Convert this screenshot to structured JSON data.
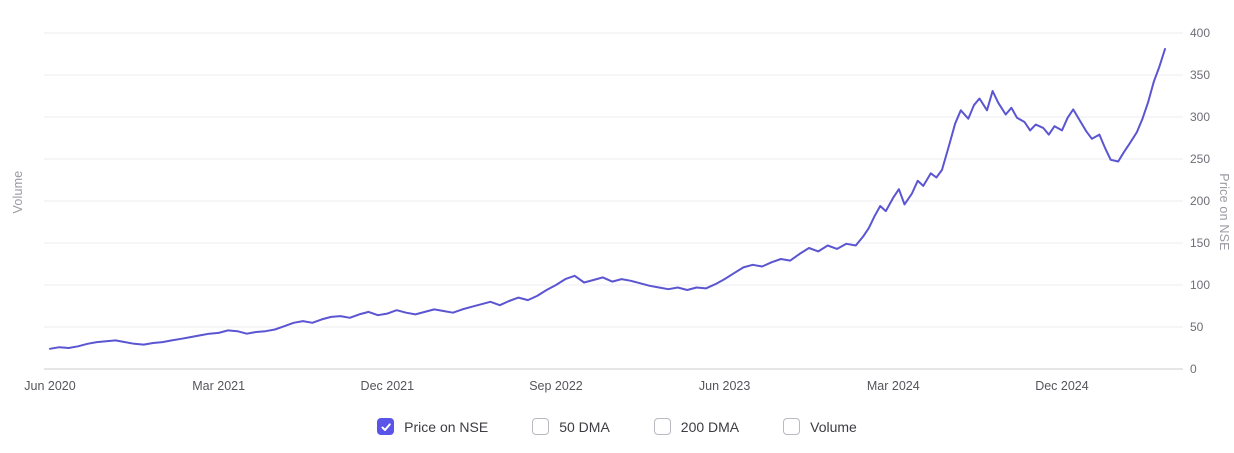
{
  "chart": {
    "left_axis_label": "Volume",
    "right_axis_label": "Price on NSE"
  },
  "chart_data": {
    "type": "line",
    "title": "",
    "ylabel_left": "Volume",
    "ylabel_right": "Price on NSE",
    "ylim": [
      0,
      400
    ],
    "grid": true,
    "legend_position": "bottom",
    "y_ticks": [
      0,
      50,
      100,
      150,
      200,
      250,
      300,
      350,
      400
    ],
    "x_ticks": [
      {
        "label": "Jun 2020",
        "month": 0
      },
      {
        "label": "Mar 2021",
        "month": 9
      },
      {
        "label": "Dec 2021",
        "month": 18
      },
      {
        "label": "Sep 2022",
        "month": 27
      },
      {
        "label": "Jun 2023",
        "month": 36
      },
      {
        "label": "Mar 2024",
        "month": 45
      },
      {
        "label": "Dec 2024",
        "month": 54
      }
    ],
    "series": [
      {
        "name": "Price on NSE",
        "color": "#5b55d1",
        "x_unit": "months since Jun 2020",
        "points": [
          [
            0,
            24
          ],
          [
            0.5,
            26
          ],
          [
            1,
            25
          ],
          [
            1.5,
            27
          ],
          [
            2,
            30
          ],
          [
            2.5,
            32
          ],
          [
            3,
            33
          ],
          [
            3.5,
            34
          ],
          [
            4,
            32
          ],
          [
            4.5,
            30
          ],
          [
            5,
            29
          ],
          [
            5.5,
            31
          ],
          [
            6,
            32
          ],
          [
            6.5,
            34
          ],
          [
            7,
            36
          ],
          [
            7.5,
            38
          ],
          [
            8,
            40
          ],
          [
            8.5,
            42
          ],
          [
            9,
            43
          ],
          [
            9.5,
            46
          ],
          [
            10,
            45
          ],
          [
            10.5,
            42
          ],
          [
            11,
            44
          ],
          [
            11.5,
            45
          ],
          [
            12,
            47
          ],
          [
            12.5,
            51
          ],
          [
            13,
            55
          ],
          [
            13.5,
            57
          ],
          [
            14,
            55
          ],
          [
            14.5,
            59
          ],
          [
            15,
            62
          ],
          [
            15.5,
            63
          ],
          [
            16,
            61
          ],
          [
            16.5,
            65
          ],
          [
            17,
            68
          ],
          [
            17.5,
            64
          ],
          [
            18,
            66
          ],
          [
            18.5,
            70
          ],
          [
            19,
            67
          ],
          [
            19.5,
            65
          ],
          [
            20,
            68
          ],
          [
            20.5,
            71
          ],
          [
            21,
            69
          ],
          [
            21.5,
            67
          ],
          [
            22,
            71
          ],
          [
            22.5,
            74
          ],
          [
            23,
            77
          ],
          [
            23.5,
            80
          ],
          [
            24,
            76
          ],
          [
            24.5,
            81
          ],
          [
            25,
            85
          ],
          [
            25.5,
            82
          ],
          [
            26,
            87
          ],
          [
            26.5,
            94
          ],
          [
            27,
            100
          ],
          [
            27.5,
            107
          ],
          [
            28,
            111
          ],
          [
            28.5,
            103
          ],
          [
            29,
            106
          ],
          [
            29.5,
            109
          ],
          [
            30,
            104
          ],
          [
            30.5,
            107
          ],
          [
            31,
            105
          ],
          [
            31.5,
            102
          ],
          [
            32,
            99
          ],
          [
            32.5,
            97
          ],
          [
            33,
            95
          ],
          [
            33.5,
            97
          ],
          [
            34,
            94
          ],
          [
            34.5,
            97
          ],
          [
            35,
            96
          ],
          [
            35.5,
            101
          ],
          [
            36,
            107
          ],
          [
            36.5,
            114
          ],
          [
            37,
            121
          ],
          [
            37.5,
            124
          ],
          [
            38,
            122
          ],
          [
            38.5,
            127
          ],
          [
            39,
            131
          ],
          [
            39.5,
            129
          ],
          [
            40,
            137
          ],
          [
            40.5,
            144
          ],
          [
            41,
            140
          ],
          [
            41.5,
            147
          ],
          [
            42,
            143
          ],
          [
            42.5,
            149
          ],
          [
            43,
            147
          ],
          [
            43.4,
            158
          ],
          [
            43.7,
            168
          ],
          [
            44,
            182
          ],
          [
            44.3,
            194
          ],
          [
            44.6,
            188
          ],
          [
            45,
            204
          ],
          [
            45.3,
            214
          ],
          [
            45.6,
            196
          ],
          [
            46,
            209
          ],
          [
            46.3,
            224
          ],
          [
            46.6,
            218
          ],
          [
            47,
            233
          ],
          [
            47.3,
            228
          ],
          [
            47.6,
            237
          ],
          [
            48,
            268
          ],
          [
            48.3,
            292
          ],
          [
            48.6,
            308
          ],
          [
            49,
            298
          ],
          [
            49.3,
            314
          ],
          [
            49.6,
            322
          ],
          [
            50,
            308
          ],
          [
            50.3,
            331
          ],
          [
            50.6,
            317
          ],
          [
            51,
            303
          ],
          [
            51.3,
            311
          ],
          [
            51.6,
            299
          ],
          [
            52,
            294
          ],
          [
            52.3,
            284
          ],
          [
            52.6,
            291
          ],
          [
            53,
            287
          ],
          [
            53.3,
            279
          ],
          [
            53.6,
            289
          ],
          [
            54,
            284
          ],
          [
            54.3,
            299
          ],
          [
            54.6,
            309
          ],
          [
            55,
            294
          ],
          [
            55.3,
            283
          ],
          [
            55.6,
            274
          ],
          [
            56,
            279
          ],
          [
            56.3,
            263
          ],
          [
            56.6,
            249
          ],
          [
            57,
            247
          ],
          [
            57.3,
            258
          ],
          [
            57.6,
            268
          ],
          [
            58,
            282
          ],
          [
            58.3,
            298
          ],
          [
            58.6,
            318
          ],
          [
            58.9,
            342
          ],
          [
            59.2,
            360
          ],
          [
            59.5,
            381
          ]
        ]
      }
    ]
  },
  "legend": {
    "accent": "#5a55e8",
    "items": [
      {
        "label": "Price on NSE",
        "checked": true
      },
      {
        "label": "50 DMA",
        "checked": false
      },
      {
        "label": "200 DMA",
        "checked": false
      },
      {
        "label": "Volume",
        "checked": false
      }
    ]
  }
}
